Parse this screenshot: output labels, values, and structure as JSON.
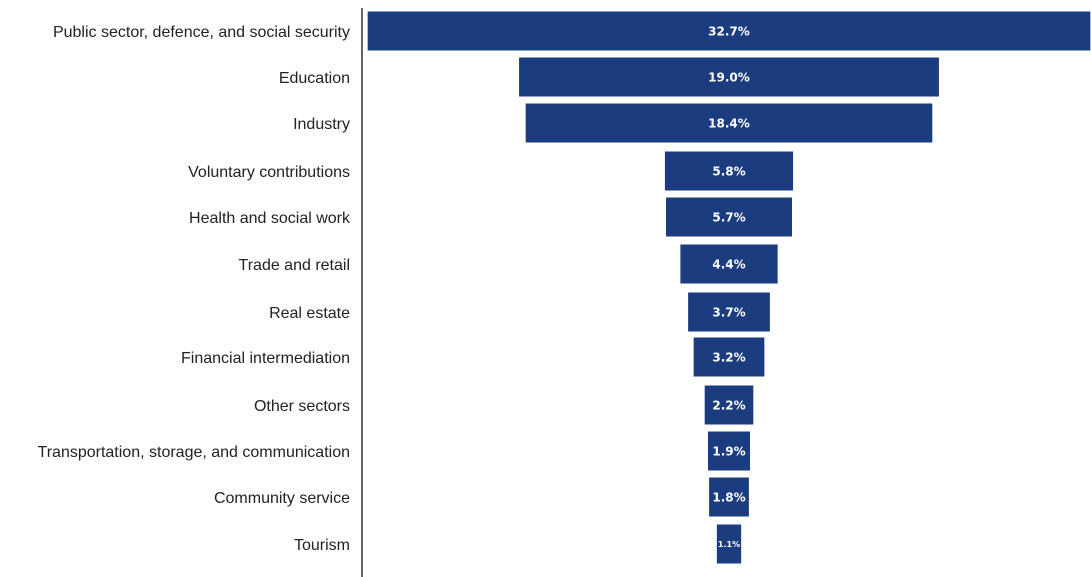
{
  "chart_data": {
    "type": "bar",
    "orientation": "horizontal",
    "style": "funnel",
    "title": "",
    "xlabel": "",
    "ylabel": "",
    "grid": false,
    "legend": "none",
    "bar_color": "#1c3c80",
    "label_color": "#ffffff",
    "axis_color": "#333333",
    "categories": [
      "Public sector, defence, and social security",
      "Education",
      "Industry",
      "Voluntary contributions",
      "Health and social work",
      "Trade and retail",
      "Real estate",
      "Financial intermediation",
      "Other sectors",
      "Transportation, storage, and communication",
      "Community service",
      "Tourism"
    ],
    "values": [
      32.7,
      19.0,
      18.4,
      5.8,
      5.7,
      4.4,
      3.7,
      3.2,
      2.2,
      1.9,
      1.8,
      1.1
    ],
    "value_labels": [
      "32.7%",
      "19.0%",
      "18.4%",
      "5.8%",
      "5.7%",
      "4.4%",
      "3.7%",
      "3.2%",
      "2.2%",
      "1.9%",
      "1.8%",
      "1.1%"
    ],
    "unit": "%"
  }
}
